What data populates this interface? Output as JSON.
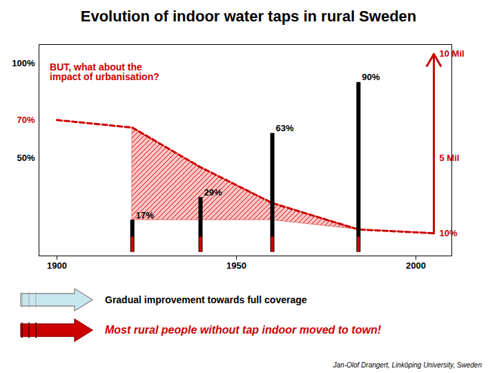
{
  "chart_data": {
    "type": "bar",
    "title": "Evolution of indoor water taps in rural Sweden",
    "xlim": [
      1895,
      2010
    ],
    "ylim": [
      -2,
      110
    ],
    "xticks": [
      1900,
      1950,
      2000
    ],
    "yticks": [
      {
        "value": 100,
        "label": "100%"
      },
      {
        "value": 70,
        "label": "70%"
      },
      {
        "value": 50,
        "label": "50%"
      }
    ],
    "series": [
      {
        "type": "area",
        "color": "#ffbbbb",
        "x": [
          1921,
          1940,
          1960,
          1984,
          2005
        ],
        "values": [
          66,
          45,
          26,
          12,
          10
        ],
        "base": [
          17,
          17,
          17,
          12,
          10
        ]
      },
      {
        "type": "line",
        "color": "#cc0000",
        "line_style": "dashed",
        "x": [
          1900,
          1921,
          1940,
          1960,
          1984,
          2005
        ],
        "values": [
          70,
          66,
          45,
          26,
          12,
          10
        ]
      },
      {
        "type": "bar",
        "color": "black",
        "x": [
          1921,
          1940,
          1960,
          1984
        ],
        "values": [
          17,
          29,
          63,
          90
        ],
        "data_labels": true,
        "value_labels": [
          "17%",
          "29%",
          "63%",
          "90%"
        ]
      },
      {
        "type": "bar",
        "color": "#cc0000",
        "x": [
          1921,
          1940,
          1960,
          1984
        ],
        "values": [
          8,
          8,
          8,
          8
        ]
      }
    ],
    "annotations": [
      {
        "x": 1898,
        "y": 100,
        "text": "BUT, what about the\nimpact of urbanisation?",
        "color": "#cc0000"
      },
      {
        "x": 2005,
        "y": 105,
        "text": "10 Mil",
        "color": "#cc0000"
      },
      {
        "x": 2005,
        "y": 50,
        "text": "5 Mil",
        "color": "#cc0000"
      },
      {
        "x": 2005,
        "y": 10,
        "text": "10%",
        "color": "#cc0000"
      },
      {
        "text": "Gradual improvement towards full coverage",
        "color": "black"
      },
      {
        "text": "Most rural people without tap indoor moved to town!",
        "color": "#cc0000"
      }
    ],
    "caption": "Jan-Olof Drangert, Linköping University, Sweden"
  }
}
